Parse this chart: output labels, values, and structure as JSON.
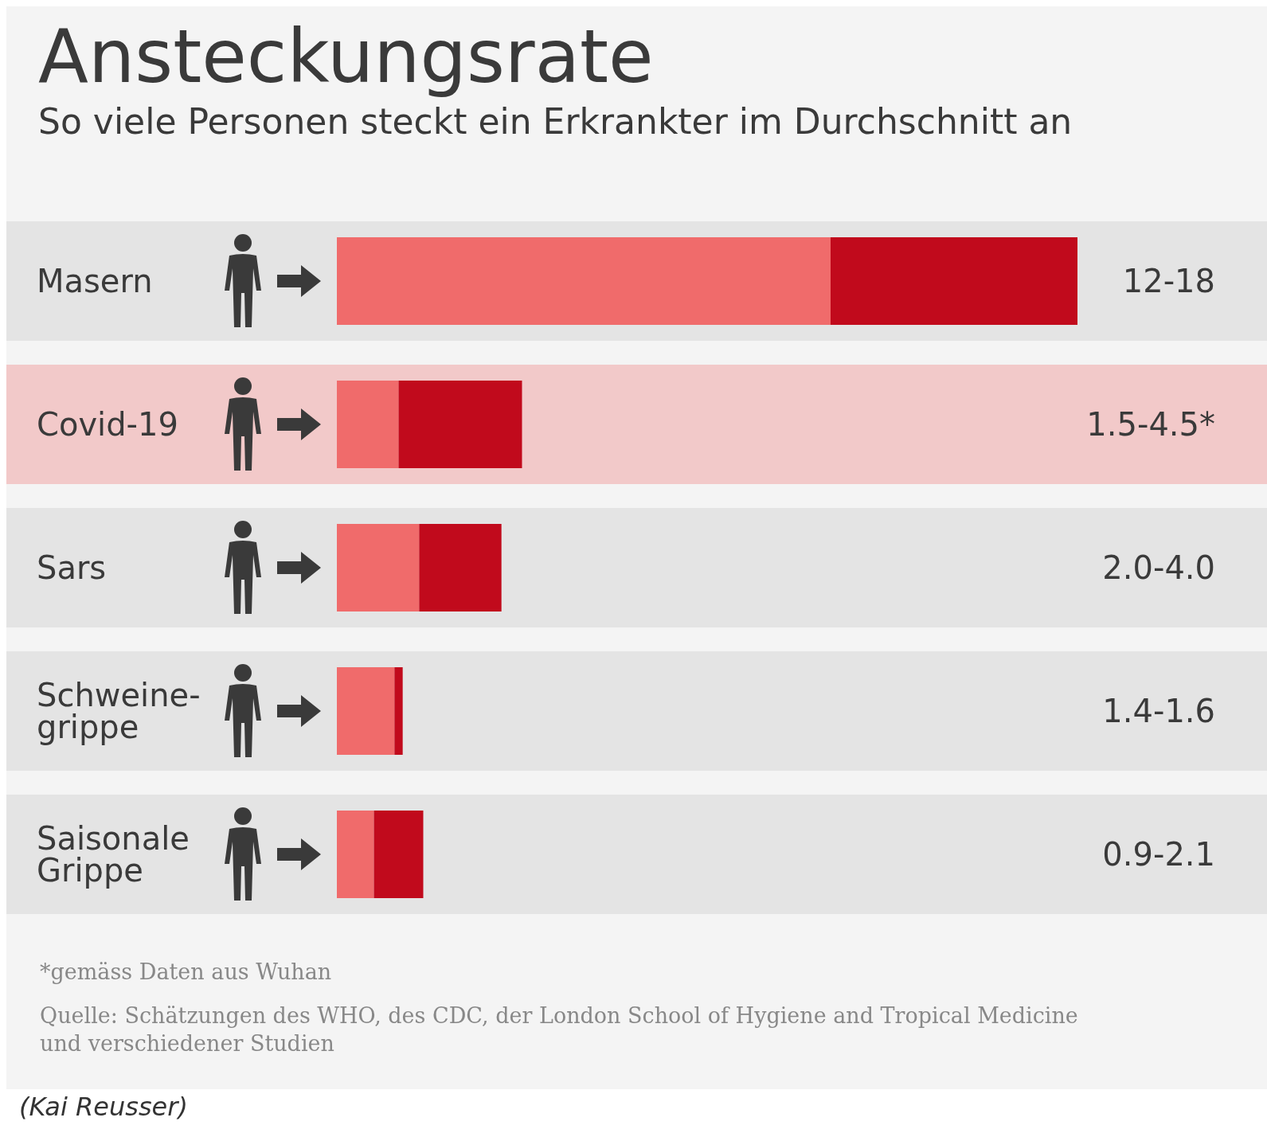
{
  "chart_data": {
    "type": "bar",
    "orientation": "horizontal",
    "stacked": true,
    "title": "Ansteckungsrate",
    "subtitle": "So viele Personen steckt ein Erkrankter im Durchschnitt an",
    "categories": [
      "Masern",
      "Covid-19",
      "Sars",
      "Schweine-\ngrippe",
      "Saisonale\nGrippe"
    ],
    "series": [
      {
        "color": "#f06b6b",
        "values": [
          12,
          1.5,
          2.0,
          1.4,
          0.9
        ]
      },
      {
        "color": "#c10a1c",
        "values": [
          6,
          3.0,
          2.0,
          0.2,
          1.2
        ],
        "value_labels": [
          "12-18",
          "1.5-4.5*",
          "2.0-4.0",
          "1.4-1.6",
          "0.9-2.1"
        ]
      }
    ],
    "bands": [
      {
        "axis": "y",
        "from": "Masern",
        "to": "Masern",
        "color": "#e4e4e4"
      },
      {
        "axis": "y",
        "from": "Covid-19",
        "to": "Covid-19",
        "color": "#f2c9c9"
      },
      {
        "axis": "y",
        "from": "Sars",
        "to": "Sars",
        "color": "#e4e4e4"
      },
      {
        "axis": "y",
        "from": "Schweine-\ngrippe",
        "to": "Schweine-\ngrippe",
        "color": "#e4e4e4"
      },
      {
        "axis": "y",
        "from": "Saisonale\nGrippe",
        "to": "Saisonale\nGrippe",
        "color": "#e4e4e4"
      }
    ],
    "annotations": [
      "*gemäss Daten aus Wuhan",
      "Quelle: Schätzungen des WHO, des CDC, der London School of Hygiene and Tropical Medicine\nund verschiedener Studien",
      "(Kai Reusser)"
    ]
  }
}
